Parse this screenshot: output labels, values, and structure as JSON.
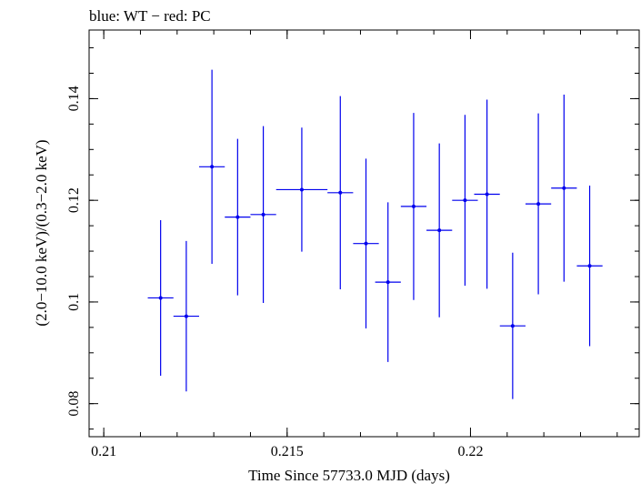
{
  "chart_data": {
    "type": "scatter",
    "title": "blue: WT − red: PC",
    "xlabel": "Time Since 57733.0 MJD (days)",
    "ylabel": "(2.0−10.0 keV)/(0.3−2.0 keV)",
    "xlim": [
      0.2096,
      0.2246
    ],
    "ylim": [
      0.0735,
      0.1535
    ],
    "x_ticks": [
      0.21,
      0.215,
      0.22
    ],
    "x_tick_labels": [
      "0.21",
      "0.215",
      "0.22"
    ],
    "y_ticks": [
      0.08,
      0.1,
      0.12,
      0.14
    ],
    "y_tick_labels": [
      "0.08",
      "0.1",
      "0.12",
      "0.14"
    ],
    "x_minor_step": 0.001,
    "y_minor_step": 0.005,
    "grid": false,
    "series": [
      {
        "name": "WT",
        "color": "#0000ee",
        "points": [
          {
            "x": 0.21155,
            "xerr": 0.00035,
            "y": 0.1008,
            "yerr_low": 0.0153,
            "yerr_high": 0.0153
          },
          {
            "x": 0.21225,
            "xerr": 0.00035,
            "y": 0.0972,
            "yerr_low": 0.0148,
            "yerr_high": 0.0148
          },
          {
            "x": 0.21295,
            "xerr": 0.00035,
            "y": 0.1266,
            "yerr_low": 0.0191,
            "yerr_high": 0.0191
          },
          {
            "x": 0.21365,
            "xerr": 0.00035,
            "y": 0.1167,
            "yerr_low": 0.0154,
            "yerr_high": 0.0154
          },
          {
            "x": 0.21435,
            "xerr": 0.00035,
            "y": 0.1172,
            "yerr_low": 0.0174,
            "yerr_high": 0.0174
          },
          {
            "x": 0.2154,
            "xerr": 0.0007,
            "y": 0.1221,
            "yerr_low": 0.0122,
            "yerr_high": 0.0122
          },
          {
            "x": 0.21645,
            "xerr": 0.00035,
            "y": 0.1215,
            "yerr_low": 0.019,
            "yerr_high": 0.019
          },
          {
            "x": 0.21715,
            "xerr": 0.00035,
            "y": 0.1115,
            "yerr_low": 0.0167,
            "yerr_high": 0.0167
          },
          {
            "x": 0.21775,
            "xerr": 0.00035,
            "y": 0.1039,
            "yerr_low": 0.0157,
            "yerr_high": 0.0157
          },
          {
            "x": 0.21845,
            "xerr": 0.00035,
            "y": 0.1188,
            "yerr_low": 0.0184,
            "yerr_high": 0.0184
          },
          {
            "x": 0.21915,
            "xerr": 0.00035,
            "y": 0.1141,
            "yerr_low": 0.0171,
            "yerr_high": 0.0171
          },
          {
            "x": 0.21985,
            "xerr": 0.00035,
            "y": 0.12,
            "yerr_low": 0.0168,
            "yerr_high": 0.0168
          },
          {
            "x": 0.22045,
            "xerr": 0.00035,
            "y": 0.1212,
            "yerr_low": 0.0186,
            "yerr_high": 0.0186
          },
          {
            "x": 0.22115,
            "xerr": 0.00035,
            "y": 0.0953,
            "yerr_low": 0.0144,
            "yerr_high": 0.0144
          },
          {
            "x": 0.22185,
            "xerr": 0.00035,
            "y": 0.1193,
            "yerr_low": 0.0178,
            "yerr_high": 0.0178
          },
          {
            "x": 0.22255,
            "xerr": 0.00035,
            "y": 0.1224,
            "yerr_low": 0.0184,
            "yerr_high": 0.0184
          },
          {
            "x": 0.22325,
            "xerr": 0.00035,
            "y": 0.1071,
            "yerr_low": 0.0158,
            "yerr_high": 0.0158
          }
        ]
      }
    ]
  }
}
